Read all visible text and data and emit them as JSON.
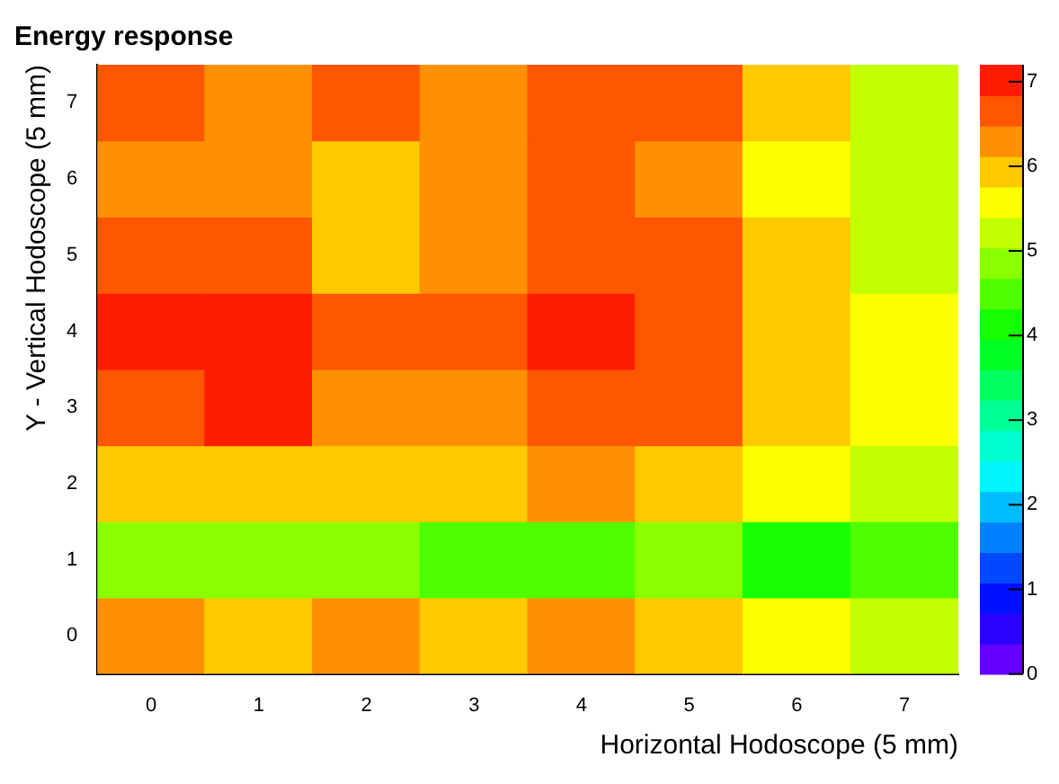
{
  "chart_data": {
    "type": "heatmap",
    "title": "Energy response",
    "xlabel": "Horizontal Hodoscope (5 mm)",
    "ylabel": "Y - Vertical Hodoscope (5 mm)",
    "categories": [
      "0",
      "1",
      "2",
      "3",
      "4",
      "5",
      "6",
      "7"
    ],
    "y_categories": [
      "7",
      "6",
      "5",
      "4",
      "3",
      "2",
      "1",
      "0"
    ],
    "cells": [
      [
        6.7,
        6.3,
        6.7,
        6.3,
        6.7,
        6.7,
        6.0,
        5.2
      ],
      [
        6.3,
        6.3,
        6.0,
        6.3,
        6.7,
        6.3,
        5.6,
        5.2
      ],
      [
        6.7,
        6.7,
        6.0,
        6.3,
        6.7,
        6.7,
        6.0,
        5.2
      ],
      [
        7.0,
        7.0,
        6.7,
        6.7,
        7.0,
        6.7,
        6.0,
        5.6
      ],
      [
        6.7,
        7.0,
        6.3,
        6.3,
        6.7,
        6.7,
        6.0,
        5.6
      ],
      [
        6.0,
        6.0,
        6.0,
        6.0,
        6.3,
        6.0,
        5.6,
        5.2
      ],
      [
        4.9,
        4.9,
        4.9,
        4.5,
        4.5,
        4.9,
        4.2,
        4.5
      ],
      [
        6.3,
        6.0,
        6.3,
        6.0,
        6.3,
        6.0,
        5.6,
        5.2
      ]
    ],
    "clim": [
      0,
      7.2
    ],
    "cticks": [
      0,
      1,
      2,
      3,
      4,
      5,
      6,
      7
    ]
  }
}
